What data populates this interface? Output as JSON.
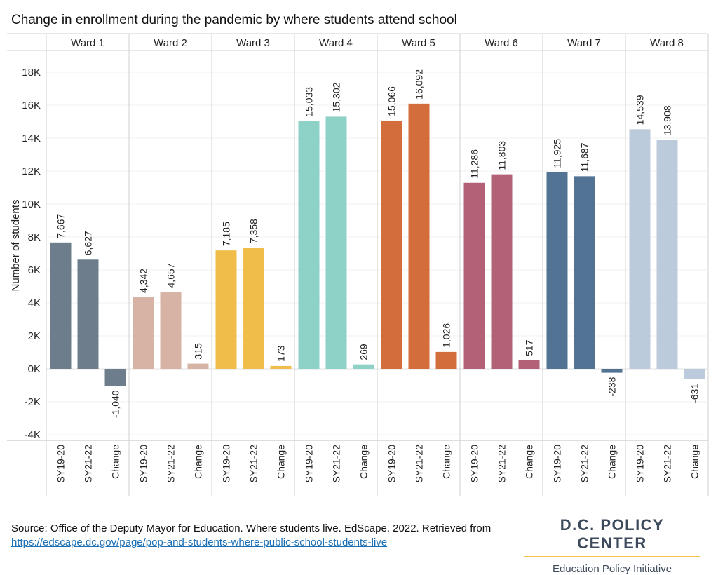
{
  "title": "Change in enrollment during the pandemic by where students attend school",
  "source": {
    "text": "Source: Office of the Deputy Mayor for Education. Where students live. EdScape. 2022. Retrieved from",
    "link": "https://edscape.dc.gov/page/pop-and-students-where-public-school-students-live"
  },
  "brand": {
    "name": "D.C. POLICY CENTER",
    "subtitle": "Education Policy Initiative",
    "accent": "#f3c24a"
  },
  "chart_data": {
    "type": "bar",
    "ylabel": "Number of students",
    "ylim": [
      -4000,
      19000
    ],
    "yticks": [
      -4000,
      -2000,
      0,
      2000,
      4000,
      6000,
      8000,
      10000,
      12000,
      14000,
      16000,
      18000
    ],
    "ytick_labels": [
      "-4K",
      "-2K",
      "0K",
      "2K",
      "4K",
      "6K",
      "8K",
      "10K",
      "12K",
      "14K",
      "16K",
      "18K"
    ],
    "grid": true,
    "categories": [
      "SY19-20",
      "SY21-22",
      "Change"
    ],
    "panels": [
      {
        "name": "Ward 1",
        "values": [
          7667,
          6627,
          -1040
        ],
        "labels": [
          "7,667",
          "6,627",
          "-1,040"
        ],
        "color": "#6e7d8c"
      },
      {
        "name": "Ward 2",
        "values": [
          4342,
          4657,
          315
        ],
        "labels": [
          "4,342",
          "4,657",
          "315"
        ],
        "color": "#d6b3a5"
      },
      {
        "name": "Ward 3",
        "values": [
          7185,
          7358,
          173
        ],
        "labels": [
          "7,185",
          "7,358",
          "173"
        ],
        "color": "#f0bd4a"
      },
      {
        "name": "Ward 4",
        "values": [
          15033,
          15302,
          269
        ],
        "labels": [
          "15,033",
          "15,302",
          "269"
        ],
        "color": "#8ed1c6"
      },
      {
        "name": "Ward 5",
        "values": [
          15066,
          16092,
          1026
        ],
        "labels": [
          "15,066",
          "16,092",
          "1,026"
        ],
        "color": "#d36e3c"
      },
      {
        "name": "Ward 6",
        "values": [
          11286,
          11803,
          517
        ],
        "labels": [
          "11,286",
          "11,803",
          "517"
        ],
        "color": "#b26176"
      },
      {
        "name": "Ward 7",
        "values": [
          11925,
          11687,
          -238
        ],
        "labels": [
          "11,925",
          "11,687",
          "-238"
        ],
        "color": "#527394"
      },
      {
        "name": "Ward 8",
        "values": [
          14539,
          13908,
          -631
        ],
        "labels": [
          "14,539",
          "13,908",
          "-631"
        ],
        "color": "#bccbdb"
      }
    ]
  }
}
